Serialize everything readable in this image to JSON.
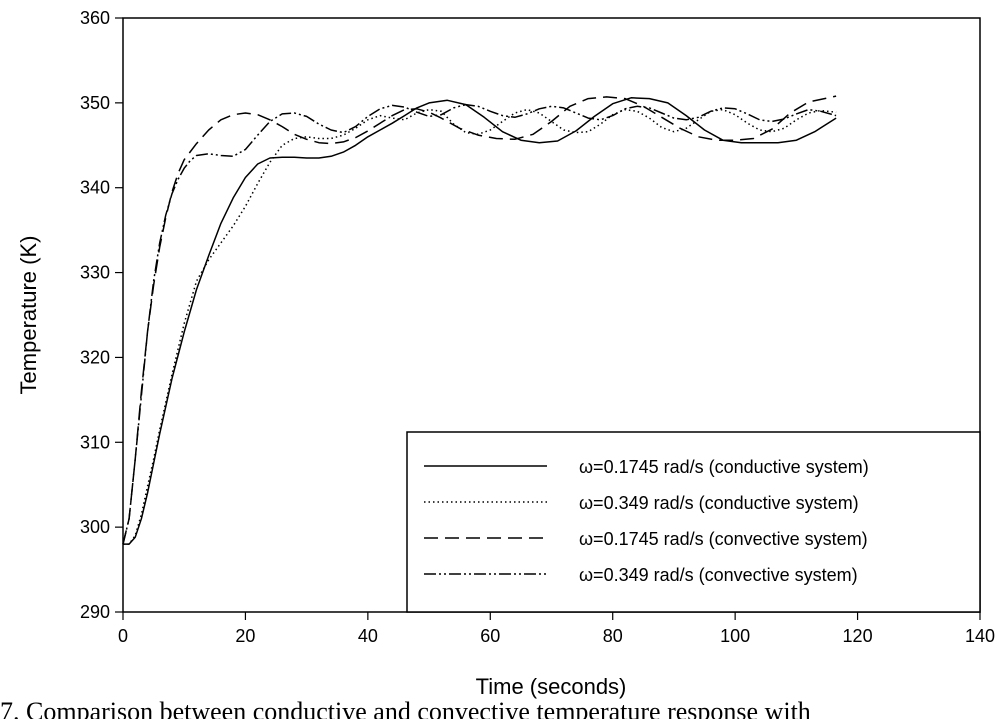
{
  "chart_data": {
    "type": "line",
    "xlabel": "Time (seconds)",
    "ylabel": "Temperature (K)",
    "xlim": [
      0,
      140
    ],
    "ylim": [
      290,
      360
    ],
    "xticks": [
      "0",
      "20",
      "40",
      "60",
      "80",
      "100",
      "120",
      "140"
    ],
    "yticks": [
      "290",
      "300",
      "310",
      "320",
      "330",
      "340",
      "350",
      "360"
    ],
    "grid": false,
    "legend_position": "bottom-right",
    "series": [
      {
        "name": "ω=0.1745 rad/s (conductive system)",
        "style": "solid",
        "x": [
          0,
          1,
          2,
          3,
          4,
          5,
          6,
          8,
          10,
          12,
          14,
          16,
          18,
          20,
          22,
          24,
          26,
          28,
          30,
          32,
          34,
          36,
          38,
          40,
          42,
          44,
          46,
          48,
          50,
          53,
          56,
          59,
          62,
          65,
          68,
          71,
          74,
          77,
          80,
          83,
          86,
          89,
          92,
          95,
          98,
          101,
          104,
          107,
          110,
          113,
          116.5
        ],
        "y": [
          298.0,
          298.0,
          298.8,
          301,
          304,
          307.5,
          311,
          317.5,
          323,
          328,
          332,
          335.8,
          338.8,
          341.2,
          342.8,
          343.5,
          343.6,
          343.6,
          343.5,
          343.5,
          343.7,
          344.2,
          345.0,
          346.0,
          346.8,
          347.6,
          348.5,
          349.4,
          350.0,
          350.3,
          349.8,
          348.3,
          346.6,
          345.6,
          345.3,
          345.5,
          346.7,
          348.4,
          349.9,
          350.6,
          350.5,
          350.0,
          348.5,
          346.8,
          345.6,
          345.3,
          345.3,
          345.3,
          345.6,
          346.6,
          348.2
        ]
      },
      {
        "name": "ω=0.349 rad/s (conductive system)",
        "style": "dotted",
        "x": [
          0,
          1,
          2,
          3,
          4,
          5,
          6,
          8,
          10,
          12,
          14,
          16,
          18,
          20,
          22,
          24,
          26,
          28,
          30,
          32,
          34,
          36,
          38,
          40,
          42,
          44,
          46,
          48,
          50,
          52,
          54,
          56,
          58,
          60,
          62,
          64,
          66,
          68,
          70,
          72,
          74,
          76,
          78,
          80,
          82,
          84,
          86,
          88,
          90,
          92,
          94,
          96,
          98,
          100,
          102,
          104,
          106,
          108,
          110,
          112,
          114,
          116.5
        ],
        "y": [
          298.0,
          298.0,
          299.0,
          301.5,
          304.8,
          308,
          311.5,
          318,
          324,
          329,
          331.5,
          333.5,
          335.5,
          337.8,
          340.5,
          343,
          345,
          345.8,
          346.0,
          345.8,
          345.8,
          346.2,
          347.0,
          348.0,
          348.5,
          348.2,
          348.0,
          348.8,
          349.2,
          349.0,
          347.5,
          346.5,
          346.3,
          346.8,
          347.8,
          348.8,
          349.2,
          348.8,
          347.8,
          346.8,
          346.5,
          346.6,
          347.5,
          348.6,
          349.2,
          349.0,
          348.2,
          347.1,
          346.6,
          347.0,
          348.0,
          349.0,
          349.2,
          348.6,
          347.6,
          346.8,
          346.6,
          347.0,
          348.0,
          348.8,
          349.1,
          348.9
        ]
      },
      {
        "name": "ω=0.1745 rad/s (convective system)",
        "style": "dashed",
        "x": [
          0,
          1,
          2,
          3,
          4,
          5,
          6,
          7,
          8,
          9,
          10,
          12,
          14,
          16,
          18,
          20,
          22,
          24,
          26,
          28,
          30,
          32,
          34,
          36,
          38,
          40,
          42,
          44,
          46,
          48,
          50,
          52,
          55,
          58,
          61,
          64,
          67,
          70,
          73,
          76,
          79,
          82,
          85,
          88,
          91,
          94,
          97,
          100,
          103,
          106,
          109,
          112,
          116.5
        ],
        "y": [
          298.0,
          301,
          308,
          316,
          323,
          328.5,
          333,
          336.5,
          339.5,
          341.7,
          343.3,
          345.2,
          346.8,
          348,
          348.6,
          348.8,
          348.6,
          348.0,
          347.2,
          346.3,
          345.7,
          345.3,
          345.2,
          345.4,
          345.9,
          346.7,
          347.6,
          348.5,
          349.2,
          349.3,
          348.9,
          348.2,
          347.0,
          346.2,
          345.8,
          345.7,
          346.3,
          347.8,
          349.6,
          350.5,
          350.7,
          350.5,
          349.6,
          348.3,
          347.0,
          346.0,
          345.6,
          345.6,
          345.8,
          346.9,
          348.8,
          350.1,
          350.8
        ]
      },
      {
        "name": "ω=0.349 rad/s (convective system)",
        "style": "dash-dot-dot",
        "x": [
          0,
          1,
          2,
          3,
          4,
          5,
          6,
          7,
          8,
          9,
          10,
          11,
          12,
          14,
          16,
          18,
          20,
          22,
          24,
          26,
          28,
          30,
          32,
          34,
          36,
          38,
          40,
          42,
          44,
          46,
          48,
          50,
          52,
          54,
          56,
          58,
          60,
          62,
          64,
          66,
          68,
          70,
          72,
          74,
          76,
          78,
          80,
          82,
          84,
          86,
          88,
          90,
          92,
          94,
          96,
          98,
          100,
          102,
          104,
          106,
          108,
          110,
          112,
          114,
          116.5
        ],
        "y": [
          298.0,
          301,
          308,
          315.5,
          323,
          329,
          333.5,
          336.8,
          339.3,
          341,
          342.3,
          343.2,
          343.8,
          344.0,
          343.8,
          343.7,
          344.5,
          346.2,
          347.8,
          348.7,
          348.8,
          348.4,
          347.5,
          346.8,
          346.5,
          347.2,
          348.4,
          349.3,
          349.7,
          349.5,
          348.9,
          348.4,
          348.6,
          349.4,
          349.8,
          349.6,
          349.0,
          348.5,
          348.3,
          348.7,
          349.3,
          349.6,
          349.4,
          348.8,
          348.2,
          348.0,
          348.5,
          349.3,
          349.6,
          349.4,
          348.8,
          348.2,
          348.0,
          348.3,
          349.0,
          349.4,
          349.3,
          348.7,
          348.0,
          347.8,
          348.1,
          348.7,
          349.2,
          349.0,
          348.5
        ]
      }
    ]
  },
  "caption": "7. Comparison between conductive and convective temperature response with"
}
